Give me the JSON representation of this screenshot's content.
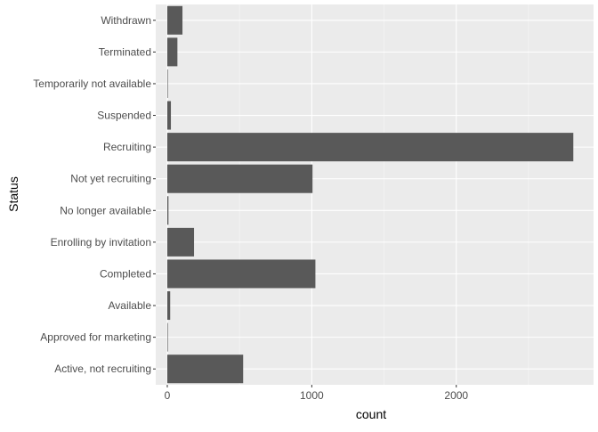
{
  "chart_data": {
    "type": "bar",
    "orientation": "horizontal",
    "title": "",
    "xlabel": "count",
    "ylabel": "Status",
    "xlim": [
      -80,
      2950
    ],
    "x_ticks": [
      0,
      1000,
      2000
    ],
    "categories": [
      "Active, not recruiting",
      "Approved for marketing",
      "Available",
      "Completed",
      "Enrolling by invitation",
      "No longer available",
      "Not yet recruiting",
      "Recruiting",
      "Suspended",
      "Temporarily not available",
      "Terminated",
      "Withdrawn"
    ],
    "values": [
      525,
      1,
      20,
      1025,
      185,
      8,
      1005,
      2810,
      25,
      1,
      70,
      105
    ],
    "grid": true,
    "legend": "none",
    "colors": {
      "bar": "#595959",
      "panel_background": "#ebebeb",
      "grid_major": "#ffffff",
      "tick_text": "#4d4d4d"
    }
  }
}
